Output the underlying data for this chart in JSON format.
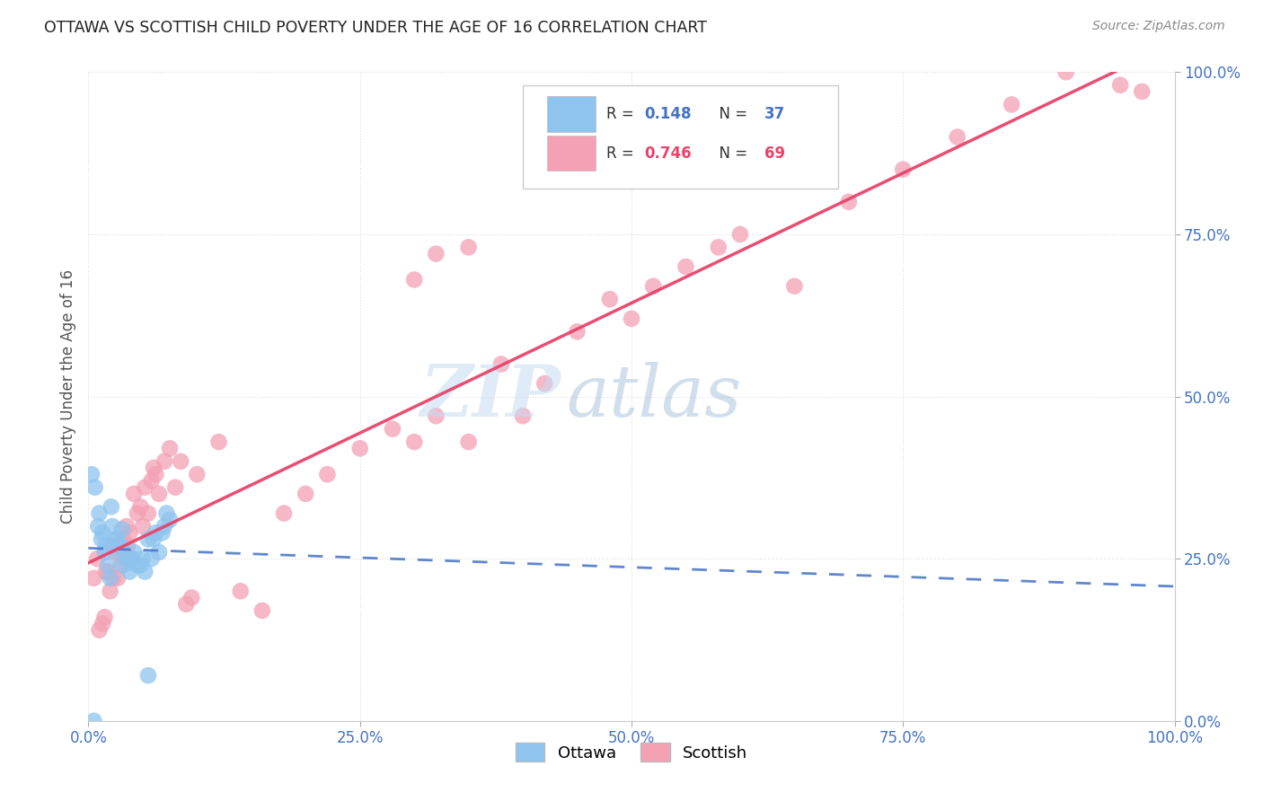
{
  "title": "OTTAWA VS SCOTTISH CHILD POVERTY UNDER THE AGE OF 16 CORRELATION CHART",
  "source": "Source: ZipAtlas.com",
  "ylabel": "Child Poverty Under the Age of 16",
  "R_ottawa": 0.148,
  "N_ottawa": 37,
  "R_scottish": 0.746,
  "N_scottish": 69,
  "ottawa_color": "#8EC4EE",
  "scottish_color": "#F4A0B5",
  "ottawa_line_color": "#4472C4",
  "scottish_line_color": "#E8436A",
  "title_color": "#222222",
  "axis_label_color": "#555555",
  "tick_color": "#4472C4",
  "grid_color": "#DDDDDD",
  "ottawa_x": [
    0.5,
    1.0,
    1.2,
    1.5,
    1.8,
    2.0,
    2.2,
    2.5,
    2.8,
    3.0,
    3.2,
    3.5,
    3.8,
    4.0,
    4.2,
    4.5,
    4.8,
    5.0,
    5.2,
    5.5,
    5.8,
    6.0,
    6.2,
    6.5,
    6.8,
    7.0,
    7.2,
    7.5,
    0.3,
    0.6,
    0.9,
    1.3,
    1.6,
    2.1,
    2.6,
    3.1,
    5.5
  ],
  "ottawa_y": [
    0.0,
    32.0,
    28.0,
    26.0,
    24.0,
    22.0,
    30.0,
    28.0,
    26.0,
    27.0,
    24.0,
    25.0,
    23.0,
    25.0,
    26.0,
    24.0,
    24.0,
    25.0,
    23.0,
    28.0,
    25.0,
    28.0,
    29.0,
    26.0,
    29.0,
    30.0,
    32.0,
    31.0,
    38.0,
    36.0,
    30.0,
    29.0,
    27.0,
    33.0,
    28.0,
    29.5,
    7.0
  ],
  "scottish_x": [
    0.5,
    0.8,
    1.0,
    1.3,
    1.5,
    1.6,
    1.8,
    2.0,
    2.2,
    2.3,
    2.5,
    2.7,
    2.8,
    3.0,
    3.2,
    3.3,
    3.5,
    3.6,
    3.8,
    4.0,
    4.2,
    4.5,
    4.8,
    5.0,
    5.2,
    5.5,
    5.8,
    6.0,
    6.2,
    6.5,
    7.0,
    7.5,
    8.0,
    8.5,
    9.0,
    9.5,
    10.0,
    12.0,
    14.0,
    16.0,
    18.0,
    20.0,
    22.0,
    25.0,
    28.0,
    30.0,
    32.0,
    35.0,
    38.0,
    40.0,
    42.0,
    45.0,
    48.0,
    50.0,
    52.0,
    55.0,
    58.0,
    60.0,
    65.0,
    70.0,
    75.0,
    80.0,
    85.0,
    90.0,
    95.0,
    97.0,
    30.0,
    32.0,
    35.0
  ],
  "scottish_y": [
    22.0,
    25.0,
    14.0,
    15.0,
    16.0,
    23.0,
    23.0,
    20.0,
    27.0,
    22.0,
    26.0,
    22.0,
    27.0,
    24.0,
    28.0,
    25.0,
    30.0,
    27.0,
    29.0,
    25.0,
    35.0,
    32.0,
    33.0,
    30.0,
    36.0,
    32.0,
    37.0,
    39.0,
    38.0,
    35.0,
    40.0,
    42.0,
    36.0,
    40.0,
    18.0,
    19.0,
    38.0,
    43.0,
    20.0,
    17.0,
    32.0,
    35.0,
    38.0,
    42.0,
    45.0,
    43.0,
    47.0,
    43.0,
    55.0,
    47.0,
    52.0,
    60.0,
    65.0,
    62.0,
    67.0,
    70.0,
    73.0,
    75.0,
    67.0,
    80.0,
    85.0,
    90.0,
    95.0,
    100.0,
    98.0,
    97.0,
    68.0,
    72.0,
    73.0
  ],
  "xlim": [
    0,
    100
  ],
  "ylim": [
    0,
    100
  ],
  "xticks": [
    0,
    25,
    50,
    75,
    100
  ],
  "yticks": [
    0,
    25,
    50,
    75,
    100
  ],
  "xticklabels": [
    "0.0%",
    "25.0%",
    "50.0%",
    "75.0%",
    "100.0%"
  ],
  "yticklabels": [
    "0.0%",
    "25.0%",
    "50.0%",
    "75.0%",
    "100.0%"
  ]
}
